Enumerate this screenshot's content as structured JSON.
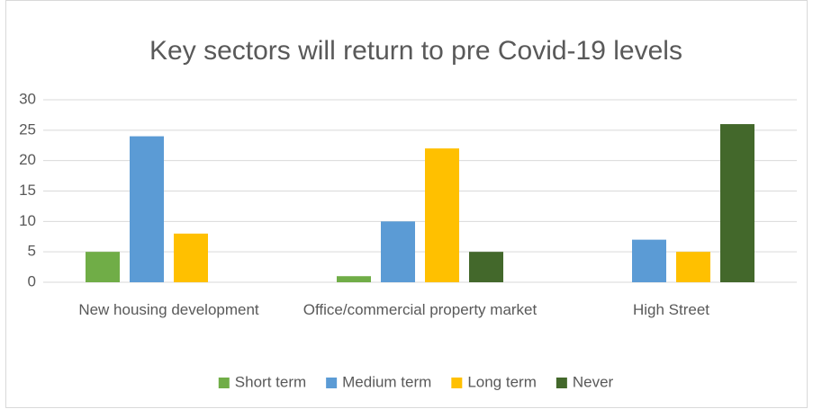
{
  "chart_data": {
    "type": "bar",
    "title": "Key sectors will return to pre Covid-19 levels",
    "categories": [
      "New housing development",
      "Office/commercial property market",
      "High Street"
    ],
    "series": [
      {
        "name": "Short term",
        "color": "#70ad47",
        "values": [
          5,
          1,
          0
        ]
      },
      {
        "name": "Medium term",
        "color": "#5b9bd5",
        "values": [
          24,
          10,
          7
        ]
      },
      {
        "name": "Long term",
        "color": "#ffc000",
        "values": [
          8,
          22,
          5
        ]
      },
      {
        "name": "Never",
        "color": "#43682b",
        "values": [
          0,
          5,
          26
        ]
      }
    ],
    "ylim": [
      0,
      30
    ],
    "yticks": [
      0,
      5,
      10,
      15,
      20,
      25,
      30
    ],
    "grid": true,
    "legend": "bottom"
  }
}
